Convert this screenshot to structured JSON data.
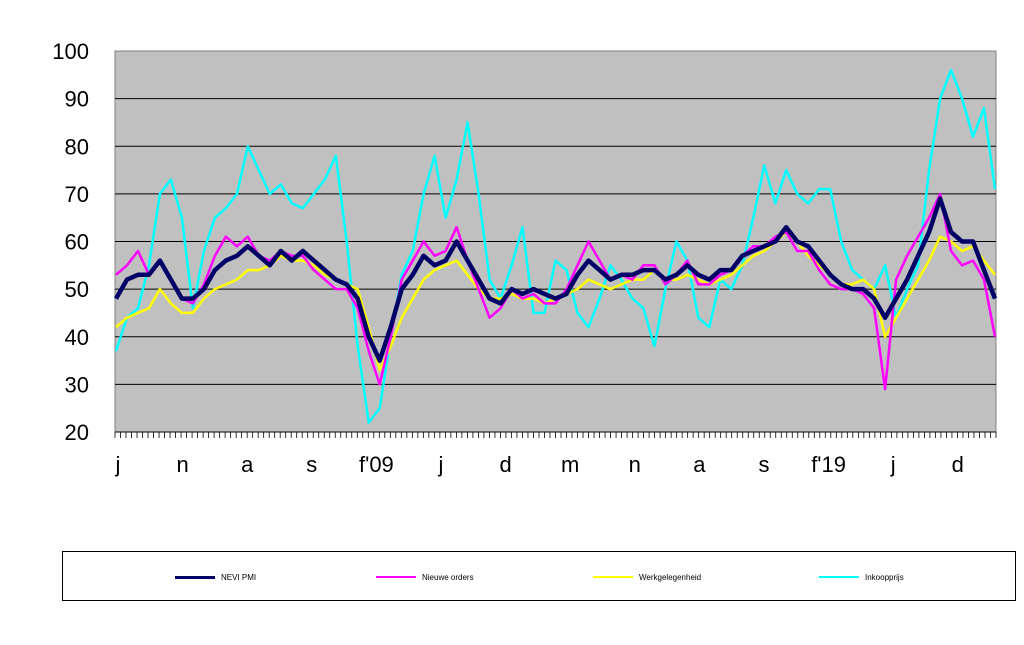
{
  "chart_data": {
    "type": "line",
    "title": "",
    "xlabel": "",
    "ylabel": "",
    "ylim": [
      20,
      100
    ],
    "yticks": [
      20,
      30,
      40,
      50,
      60,
      70,
      80,
      90,
      100
    ],
    "x_tick_labels": [
      "j",
      "n",
      "a",
      "s",
      "f'09",
      "j",
      "d",
      "m",
      "n",
      "a",
      "s",
      "f'19",
      "j",
      "d"
    ],
    "grid": "horizontal",
    "legend_position": "bottom",
    "plot_background": "#c0c0c0",
    "series": [
      {
        "name": "NEVI PMI",
        "color": "#000066",
        "values": [
          48,
          52,
          53,
          53,
          56,
          52,
          48,
          48,
          50,
          54,
          56,
          57,
          59,
          57,
          55,
          58,
          56,
          58,
          56,
          54,
          52,
          51,
          48,
          40,
          35,
          42,
          50,
          53,
          57,
          55,
          56,
          60,
          56,
          52,
          48,
          47,
          50,
          49,
          50,
          49,
          48,
          49,
          53,
          56,
          54,
          52,
          53,
          53,
          54,
          54,
          52,
          53,
          55,
          53,
          52,
          54,
          54,
          57,
          58,
          59,
          60,
          63,
          60,
          59,
          56,
          53,
          51,
          50,
          50,
          48,
          44,
          48,
          52,
          57,
          62,
          69,
          62,
          60,
          60,
          54,
          48
        ]
      },
      {
        "name": "Nieuwe orders",
        "color": "#ff00ff",
        "values": [
          53,
          55,
          58,
          53,
          56,
          52,
          48,
          47,
          51,
          57,
          61,
          59,
          61,
          57,
          56,
          58,
          57,
          57,
          54,
          52,
          50,
          50,
          46,
          37,
          30,
          40,
          52,
          56,
          60,
          57,
          58,
          63,
          56,
          50,
          44,
          46,
          50,
          48,
          49,
          47,
          47,
          50,
          55,
          60,
          56,
          52,
          53,
          52,
          55,
          55,
          51,
          53,
          56,
          51,
          51,
          53,
          54,
          57,
          59,
          59,
          61,
          62,
          58,
          58,
          54,
          51,
          50,
          50,
          49,
          46,
          29,
          52,
          57,
          61,
          65,
          70,
          58,
          55,
          56,
          52,
          40
        ]
      },
      {
        "name": "Werkgelegenheid",
        "color": "#ffff00",
        "values": [
          42,
          44,
          45,
          46,
          50,
          47,
          45,
          45,
          48,
          50,
          51,
          52,
          54,
          54,
          55,
          57,
          56,
          56,
          55,
          53,
          52,
          51,
          50,
          42,
          33,
          38,
          44,
          48,
          52,
          54,
          55,
          56,
          53,
          50,
          48,
          48,
          49,
          48,
          48,
          47,
          48,
          49,
          50,
          52,
          51,
          50,
          51,
          52,
          52,
          54,
          52,
          52,
          53,
          52,
          51,
          52,
          53,
          55,
          57,
          58,
          60,
          62,
          60,
          57,
          55,
          53,
          51,
          51,
          52,
          50,
          40,
          44,
          48,
          52,
          56,
          61,
          60,
          58,
          59,
          56,
          53
        ]
      },
      {
        "name": "Inkoopprijs",
        "color": "#00ffff",
        "values": [
          37,
          44,
          46,
          55,
          70,
          73,
          65,
          46,
          58,
          65,
          67,
          70,
          80,
          75,
          70,
          72,
          68,
          67,
          70,
          73,
          78,
          60,
          38,
          22,
          25,
          40,
          53,
          58,
          70,
          78,
          65,
          73,
          85,
          70,
          52,
          48,
          55,
          63,
          45,
          45,
          56,
          54,
          45,
          42,
          48,
          55,
          52,
          48,
          46,
          38,
          50,
          60,
          56,
          44,
          42,
          52,
          50,
          55,
          65,
          76,
          68,
          75,
          70,
          68,
          71,
          71,
          60,
          54,
          52,
          50,
          55,
          44,
          50,
          55,
          75,
          90,
          96,
          90,
          82,
          88,
          71
        ]
      }
    ]
  }
}
